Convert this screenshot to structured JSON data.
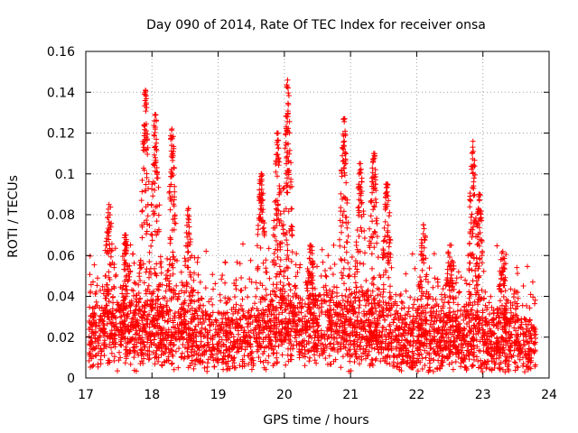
{
  "chart_data": {
    "type": "scatter",
    "title": "Day 090 of 2014, Rate Of TEC Index for receiver onsa",
    "xlabel": "GPS time / hours",
    "ylabel": "ROTI / TECUs",
    "xlim": [
      17,
      24
    ],
    "ylim": [
      0,
      0.16
    ],
    "x_ticks": [
      "17",
      "18",
      "19",
      "20",
      "21",
      "22",
      "23",
      "24"
    ],
    "y_ticks": [
      "0",
      "0.02",
      "0.04",
      "0.06",
      "0.08",
      "0.1",
      "0.12",
      "0.14",
      "0.16"
    ],
    "grid": true,
    "marker": "+",
    "marker_color": "#ff0000",
    "x_data_range": [
      17.05,
      23.8
    ],
    "background_level": {
      "x": [
        17.1,
        17.5,
        18.0,
        18.5,
        19.0,
        19.5,
        20.0,
        20.5,
        21.0,
        21.5,
        22.0,
        22.5,
        23.0,
        23.5,
        23.8
      ],
      "y": [
        0.02,
        0.022,
        0.021,
        0.02,
        0.016,
        0.018,
        0.025,
        0.024,
        0.022,
        0.02,
        0.017,
        0.018,
        0.016,
        0.017,
        0.015
      ]
    },
    "peaks": [
      {
        "x": 17.35,
        "y": 0.085
      },
      {
        "x": 17.6,
        "y": 0.07
      },
      {
        "x": 17.9,
        "y": 0.141
      },
      {
        "x": 18.05,
        "y": 0.129
      },
      {
        "x": 18.3,
        "y": 0.122
      },
      {
        "x": 18.55,
        "y": 0.083
      },
      {
        "x": 19.65,
        "y": 0.1
      },
      {
        "x": 19.9,
        "y": 0.12
      },
      {
        "x": 20.05,
        "y": 0.146
      },
      {
        "x": 20.4,
        "y": 0.065
      },
      {
        "x": 20.9,
        "y": 0.127
      },
      {
        "x": 21.15,
        "y": 0.105
      },
      {
        "x": 21.35,
        "y": 0.11
      },
      {
        "x": 21.55,
        "y": 0.095
      },
      {
        "x": 22.1,
        "y": 0.075
      },
      {
        "x": 22.5,
        "y": 0.065
      },
      {
        "x": 22.85,
        "y": 0.116
      },
      {
        "x": 22.95,
        "y": 0.09
      },
      {
        "x": 23.3,
        "y": 0.062
      }
    ]
  }
}
